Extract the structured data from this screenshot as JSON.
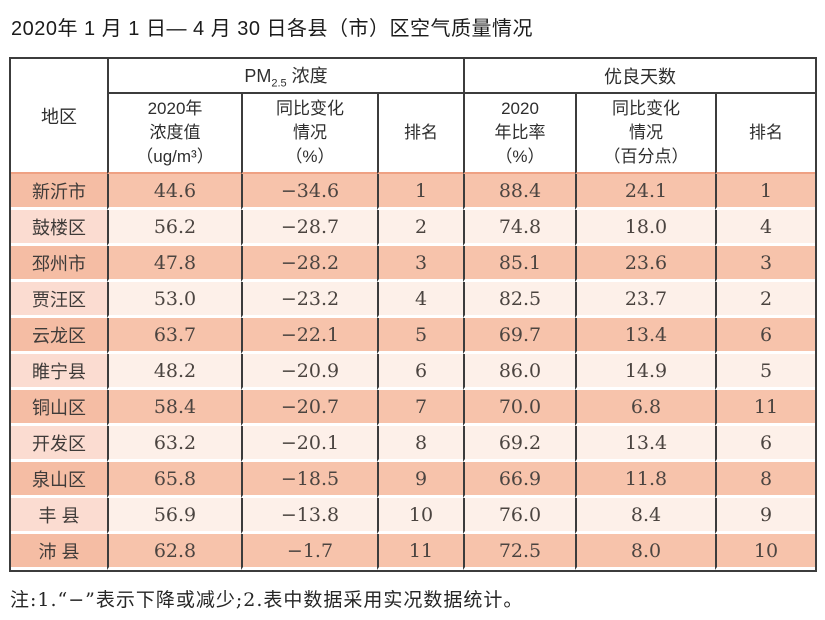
{
  "page": {
    "title": "2020年 1 月 1 日— 4 月 30 日各县（市）区空气质量情况",
    "footnote": "注:1.“−”表示下降或减少;2.表中数据采用实况数据统计。"
  },
  "colors": {
    "row_salmon": "#f7c3ab",
    "row_light": "#fdf0e9",
    "region_col_light_row": "#fbdcd1",
    "region_col_salmon_row": "#f5bda4",
    "border_dark": "#3c3c3c",
    "header_divider_salmon": "#efa183",
    "text_dark": "#4b4440"
  },
  "table": {
    "region_header": "地区",
    "group_headers": {
      "pm25_prefix": "PM",
      "pm25_sub": "2.5",
      "pm25_suffix": " 浓度",
      "good_days": "优良天数"
    },
    "sub_headers": {
      "pm_value": "2020年\n浓度值\n（ug/m³）",
      "pm_change": "同比变化\n情况\n（%）",
      "pm_rank": "排名",
      "good_rate": "2020\n年比率\n（%）",
      "good_change": "同比变化\n情况\n（百分点）",
      "good_rank": "排名"
    },
    "rows": [
      {
        "region": "新沂市",
        "pm_value": "44.6",
        "pm_change": "−34.6",
        "pm_rank": "1",
        "good_rate": "88.4",
        "good_change": "24.1",
        "good_rank": "1"
      },
      {
        "region": "鼓楼区",
        "pm_value": "56.2",
        "pm_change": "−28.7",
        "pm_rank": "2",
        "good_rate": "74.8",
        "good_change": "18.0",
        "good_rank": "4"
      },
      {
        "region": "邳州市",
        "pm_value": "47.8",
        "pm_change": "−28.2",
        "pm_rank": "3",
        "good_rate": "85.1",
        "good_change": "23.6",
        "good_rank": "3"
      },
      {
        "region": "贾汪区",
        "pm_value": "53.0",
        "pm_change": "−23.2",
        "pm_rank": "4",
        "good_rate": "82.5",
        "good_change": "23.7",
        "good_rank": "2"
      },
      {
        "region": "云龙区",
        "pm_value": "63.7",
        "pm_change": "−22.1",
        "pm_rank": "5",
        "good_rate": "69.7",
        "good_change": "13.4",
        "good_rank": "6"
      },
      {
        "region": "睢宁县",
        "pm_value": "48.2",
        "pm_change": "−20.9",
        "pm_rank": "6",
        "good_rate": "86.0",
        "good_change": "14.9",
        "good_rank": "5"
      },
      {
        "region": "铜山区",
        "pm_value": "58.4",
        "pm_change": "−20.7",
        "pm_rank": "7",
        "good_rate": "70.0",
        "good_change": "6.8",
        "good_rank": "11"
      },
      {
        "region": "开发区",
        "pm_value": "63.2",
        "pm_change": "−20.1",
        "pm_rank": "8",
        "good_rate": "69.2",
        "good_change": "13.4",
        "good_rank": "6"
      },
      {
        "region": "泉山区",
        "pm_value": "65.8",
        "pm_change": "−18.5",
        "pm_rank": "9",
        "good_rate": "66.9",
        "good_change": "11.8",
        "good_rank": "8"
      },
      {
        "region": "丰 县",
        "pm_value": "56.9",
        "pm_change": "−13.8",
        "pm_rank": "10",
        "good_rate": "76.0",
        "good_change": "8.4",
        "good_rank": "9"
      },
      {
        "region": "沛 县",
        "pm_value": "62.8",
        "pm_change": "−1.7",
        "pm_rank": "11",
        "good_rate": "72.5",
        "good_change": "8.0",
        "good_rank": "10"
      }
    ]
  }
}
